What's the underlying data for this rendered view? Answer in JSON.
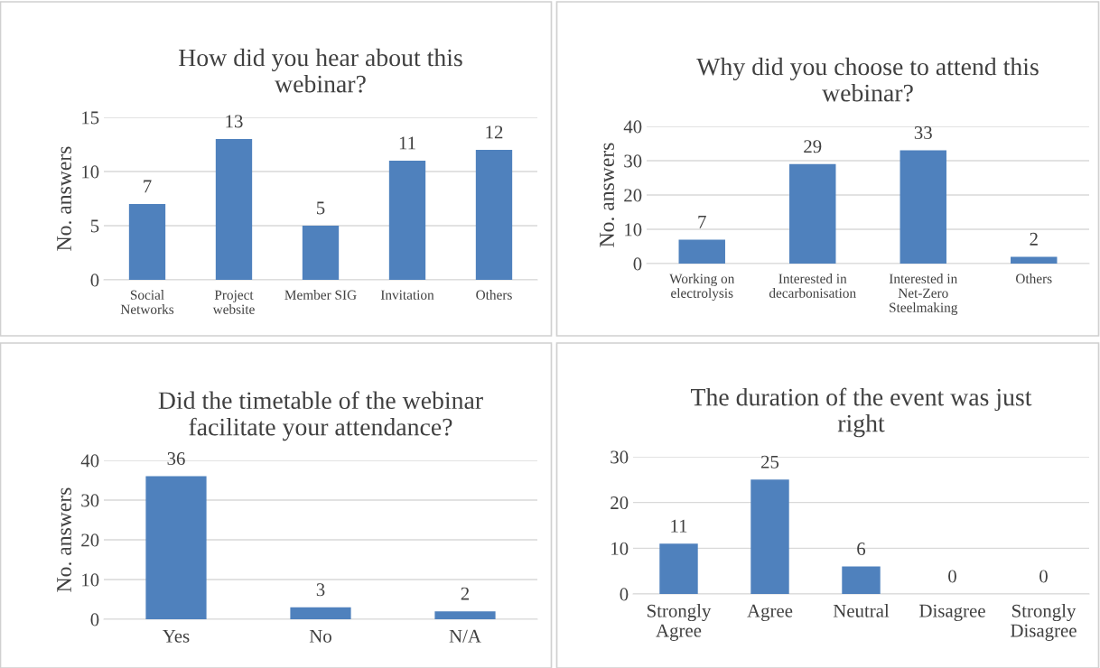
{
  "chart_data": [
    {
      "type": "bar",
      "title": "How did you hear about this\nwebinar?",
      "ylabel": "No. answers",
      "categories": [
        "Social\nNetworks",
        "Project\nwebsite",
        "Member SIG",
        "Invitation",
        "Others"
      ],
      "values": [
        7,
        13,
        5,
        11,
        12
      ],
      "color": "#4f81bd",
      "ylim": [
        0,
        15
      ],
      "yticks": [
        0,
        5,
        10,
        15
      ],
      "grid": "y",
      "data_labels": true
    },
    {
      "type": "bar",
      "title": "Why did you choose to attend this\nwebinar?",
      "ylabel": "No. answers",
      "categories": [
        "Working on\nelectrolysis",
        "Interested in\ndecarbonisation",
        "Interested in\nNet-Zero\nSteelmaking",
        "Others"
      ],
      "values": [
        7,
        29,
        33,
        2
      ],
      "color": "#4f81bd",
      "ylim": [
        0,
        40
      ],
      "yticks": [
        0,
        10,
        20,
        30,
        40
      ],
      "grid": "y",
      "data_labels": true
    },
    {
      "type": "bar",
      "title": "Did the timetable of the webinar\nfacilitate your attendance?",
      "ylabel": "No. answers",
      "categories": [
        "Yes",
        "No",
        "N/A"
      ],
      "values": [
        36,
        3,
        2
      ],
      "color": "#4f81bd",
      "ylim": [
        0,
        40
      ],
      "yticks": [
        0,
        10,
        20,
        30,
        40
      ],
      "grid": "y",
      "data_labels": true
    },
    {
      "type": "bar",
      "title": "The duration of the event was just\nright",
      "categories": [
        "Strongly\nAgree",
        "Agree",
        "Neutral",
        "Disagree",
        "Strongly\nDisagree"
      ],
      "values": [
        11,
        25,
        6,
        0,
        0
      ],
      "color": "#4f81bd",
      "ylim": [
        0,
        30
      ],
      "yticks": [
        0,
        10,
        20,
        30
      ],
      "grid": "y",
      "data_labels": true
    }
  ]
}
